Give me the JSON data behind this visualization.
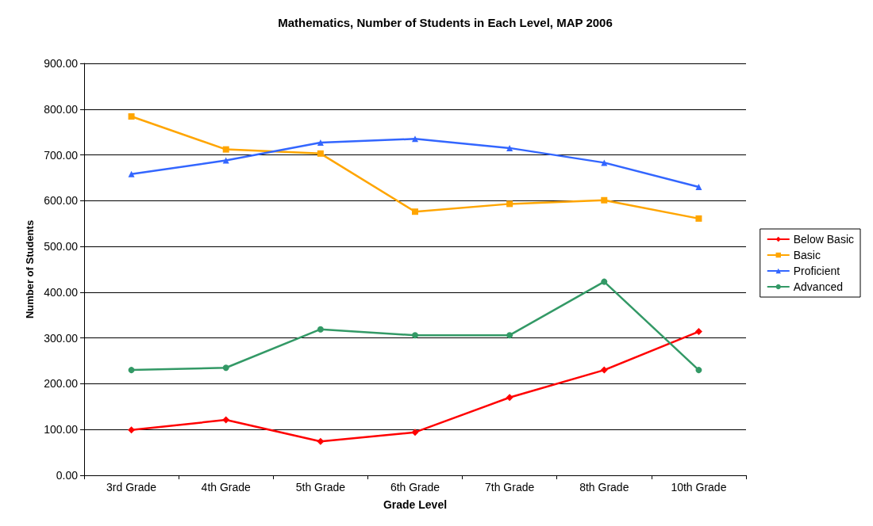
{
  "chart_data": {
    "type": "line",
    "title": "Mathematics, Number of Students in Each Level, MAP 2006",
    "xlabel": "Grade Level",
    "ylabel": "Number of Students",
    "categories": [
      "3rd Grade",
      "4th Grade",
      "5th Grade",
      "6th Grade",
      "7th Grade",
      "8th Grade",
      "10th Grade"
    ],
    "series": [
      {
        "name": "Below Basic",
        "color": "#ff0000",
        "marker": "diamond",
        "values": [
          99,
          121,
          74,
          94,
          170,
          230,
          314
        ]
      },
      {
        "name": "Basic",
        "color": "#ffa500",
        "marker": "square",
        "values": [
          784,
          712,
          703,
          576,
          593,
          601,
          561
        ]
      },
      {
        "name": "Proficient",
        "color": "#3366ff",
        "marker": "triangle",
        "values": [
          658,
          688,
          727,
          735,
          715,
          683,
          630
        ]
      },
      {
        "name": "Advanced",
        "color": "#339966",
        "marker": "circle",
        "values": [
          230,
          235,
          319,
          306,
          306,
          423,
          230
        ]
      }
    ],
    "ylim": [
      0,
      900
    ],
    "yticks": [
      {
        "value": 0,
        "label": "0.00"
      },
      {
        "value": 100,
        "label": "100.00"
      },
      {
        "value": 200,
        "label": "200.00"
      },
      {
        "value": 300,
        "label": "300.00"
      },
      {
        "value": 400,
        "label": "400.00"
      },
      {
        "value": 500,
        "label": "500.00"
      },
      {
        "value": 600,
        "label": "600.00"
      },
      {
        "value": 700,
        "label": "700.00"
      },
      {
        "value": 800,
        "label": "800.00"
      },
      {
        "value": 900,
        "label": "900.00"
      }
    ],
    "grid": "y",
    "legend": "right",
    "line_style": "solid"
  }
}
